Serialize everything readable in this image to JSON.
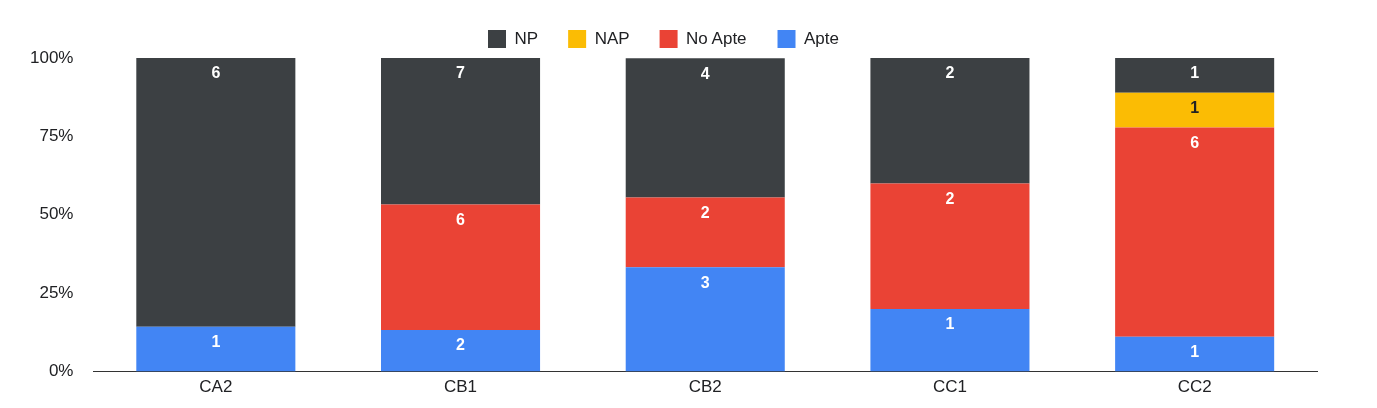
{
  "chart_data": {
    "type": "bar",
    "stacked": true,
    "categories": [
      "CA2",
      "CB1",
      "CB2",
      "CC1",
      "CC2"
    ],
    "series": [
      {
        "name": "Apte",
        "color": "#4285f4",
        "values": [
          14.3,
          13.3,
          33.3,
          20,
          11.1
        ]
      },
      {
        "name": "No Apte",
        "color": "#ea4335",
        "values": [
          null,
          40,
          22.2,
          40,
          66.7
        ]
      },
      {
        "name": "NAP",
        "color": "#fbbc04",
        "values": [
          null,
          null,
          null,
          null,
          11.1
        ]
      },
      {
        "name": "NP",
        "color": "#3c4043",
        "values": [
          85.7,
          46.7,
          44.4,
          40,
          11.1
        ]
      }
    ],
    "annotations": [
      {
        "text": "1",
        "x": "CA2",
        "y": 14.3
      },
      {
        "text": "6",
        "x": "CA2",
        "y": 100
      },
      {
        "text": "2",
        "x": "CB1",
        "y": 13.3
      },
      {
        "text": "6",
        "x": "CB1",
        "y": 53.3
      },
      {
        "text": "7",
        "x": "CB1",
        "y": 100
      },
      {
        "text": "3",
        "x": "CB2",
        "y": 33.3
      },
      {
        "text": "2",
        "x": "CB2",
        "y": 55.5
      },
      {
        "text": "4",
        "x": "CB2",
        "y": 99.9
      },
      {
        "text": "1",
        "x": "CC1",
        "y": 20
      },
      {
        "text": "2",
        "x": "CC1",
        "y": 60
      },
      {
        "text": "2",
        "x": "CC1",
        "y": 100
      },
      {
        "text": "1",
        "x": "CC2",
        "y": 11.1
      },
      {
        "text": "6",
        "x": "CC2",
        "y": 77.8
      },
      {
        "text": "1",
        "x": "CC2",
        "y": 88.9
      },
      {
        "text": "1",
        "x": "CC2",
        "y": 100
      }
    ],
    "ylim": [
      0,
      100
    ],
    "yticks": [
      {
        "value": 0,
        "label": "0%"
      },
      {
        "value": 25,
        "label": "25%"
      },
      {
        "value": 50,
        "label": "50%"
      },
      {
        "value": 75,
        "label": "75%"
      },
      {
        "value": 100,
        "label": "100%"
      }
    ],
    "grid": false,
    "legend": "top"
  }
}
